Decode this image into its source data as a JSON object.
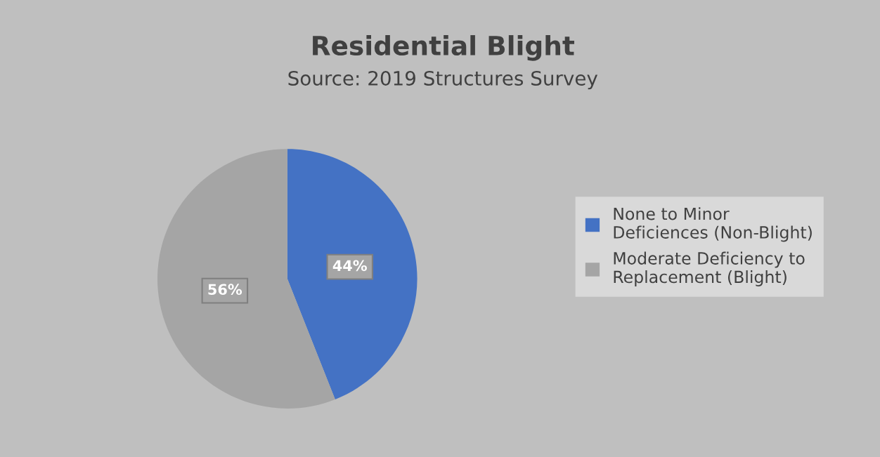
{
  "chart_data": {
    "type": "pie",
    "title": "Residential Blight",
    "subtitle": "Source: 2019 Structures Survey",
    "categories": [
      "None to Minor Deficiences (Non-Blight)",
      "Moderate Deficiency to Replacement (Blight)"
    ],
    "values": [
      44,
      56
    ],
    "colors": [
      "#4472c4",
      "#a5a5a5"
    ],
    "value_labels": [
      "44%",
      "56%"
    ],
    "legend": "right"
  }
}
